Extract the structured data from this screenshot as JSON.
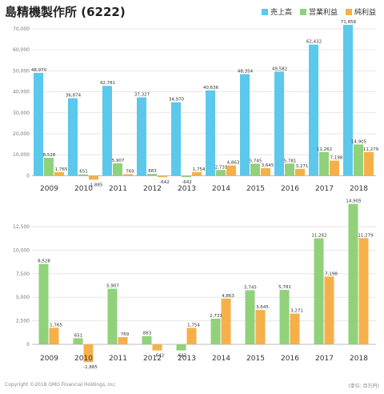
{
  "title": "島精機製作所 (6222)",
  "legend": [
    {
      "label": "売上高",
      "color": "#5bc8ec"
    },
    {
      "label": "営業利益",
      "color": "#90d17a"
    },
    {
      "label": "純利益",
      "color": "#f5b04a"
    }
  ],
  "footer": {
    "copyright": "Copyright ©2018 GMO Financial Holdings, Inc.",
    "unit": "(単位: 百万円)"
  },
  "chart_data": [
    {
      "type": "bar",
      "categories": [
        "2009",
        "2010",
        "2011",
        "2012",
        "2013",
        "2014",
        "2015",
        "2016",
        "2017",
        "2018"
      ],
      "series": [
        {
          "name": "売上高",
          "color": "#5bc8ec",
          "values": [
            48970,
            36874,
            42781,
            37327,
            34970,
            40636,
            48354,
            49582,
            62432,
            71858
          ]
        },
        {
          "name": "営業利益",
          "color": "#90d17a",
          "values": [
            8528,
            651,
            5907,
            883,
            -642,
            2731,
            5745,
            5781,
            11262,
            14905
          ]
        },
        {
          "name": "純利益",
          "color": "#f5b04a",
          "values": [
            1765,
            -1885,
            769,
            -642,
            1754,
            4863,
            3645,
            3271,
            7198,
            11279
          ]
        }
      ],
      "yticks": [
        "0",
        "10,000",
        "20,000",
        "30,000",
        "40,000",
        "50,000",
        "60,000",
        "70,000"
      ],
      "ylim": [
        -2500,
        73000
      ]
    },
    {
      "type": "bar",
      "categories": [
        "2009",
        "2010",
        "2011",
        "2012",
        "2013",
        "2014",
        "2015",
        "2016",
        "2017",
        "2018"
      ],
      "series": [
        {
          "name": "営業利益",
          "color": "#90d17a",
          "values": [
            8528,
            651,
            5907,
            883,
            -642,
            2731,
            5745,
            5781,
            11262,
            14905
          ]
        },
        {
          "name": "純利益",
          "color": "#f5b04a",
          "values": [
            1765,
            -1885,
            769,
            -642,
            1754,
            4863,
            3645,
            3271,
            7198,
            11279
          ]
        }
      ],
      "yticks": [
        "0",
        "2,500",
        "5,000",
        "7,500",
        "10,000",
        "12,500"
      ],
      "ylim": [
        -2800,
        15300
      ]
    }
  ]
}
